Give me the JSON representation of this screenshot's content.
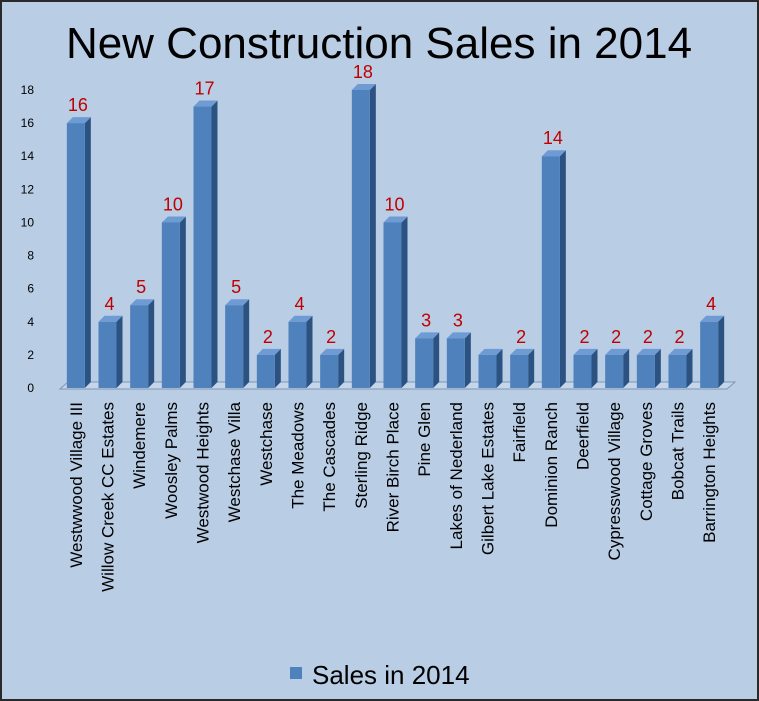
{
  "chart_data": {
    "type": "bar",
    "title": "New Construction Sales in 2014",
    "xlabel": "",
    "ylabel": "",
    "ylim": [
      0,
      18
    ],
    "yticks": [
      0,
      2,
      4,
      6,
      8,
      10,
      12,
      14,
      16,
      18
    ],
    "grid": false,
    "legend_position": "bottom",
    "categories": [
      "Westwwood Village III",
      "Willow Creek CC Estates",
      "Windemere",
      "Woosley Palms",
      "Westwood Heights",
      "Westchase Villa",
      "Westchase",
      "The Meadows",
      "The Cascades",
      "Sterling Ridge",
      "River Birch Place",
      "Pine Glen",
      "Lakes of Nederland",
      "Gilbert Lake Estates",
      "Fairfield",
      "Dominion Ranch",
      "Deerfield",
      "Cypresswood Village",
      "Cottage Groves",
      "Bobcat Trails",
      "Barrington Heights"
    ],
    "series": [
      {
        "name": "Sales in 2014",
        "values": [
          16,
          4,
          5,
          10,
          17,
          5,
          2,
          4,
          2,
          18,
          10,
          3,
          3,
          2,
          2,
          14,
          2,
          2,
          2,
          2,
          4
        ],
        "data_labels": [
          "16",
          "4",
          "5",
          "10",
          "17",
          "5",
          "2",
          "4",
          "2",
          "18",
          "10",
          "3",
          "3",
          "",
          "2",
          "14",
          "2",
          "2",
          "2",
          "2",
          "4"
        ]
      }
    ],
    "colors": {
      "bar_front": "#4f81bd",
      "bar_side": "#2c5282",
      "bar_top": "#6f9bd4",
      "data_label": "#c00000",
      "background": "#b9cde5",
      "text": "#000000"
    }
  }
}
